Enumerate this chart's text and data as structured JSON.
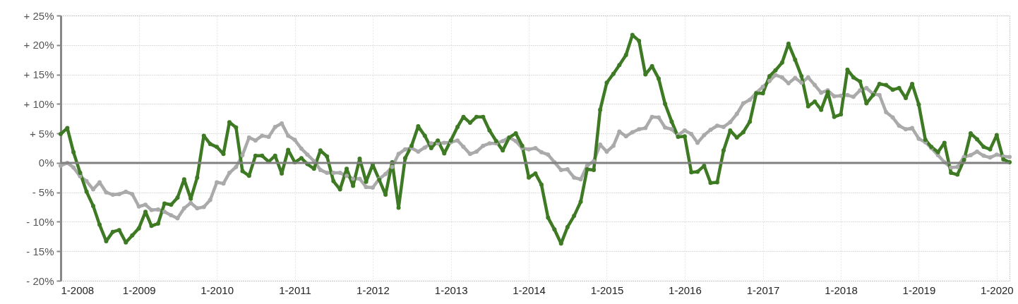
{
  "chart_data": {
    "type": "line",
    "x": [
      "2008-01",
      "2008-02",
      "2008-03",
      "2008-04",
      "2008-05",
      "2008-06",
      "2008-07",
      "2008-08",
      "2008-09",
      "2008-10",
      "2008-11",
      "2008-12",
      "2009-01",
      "2009-02",
      "2009-03",
      "2009-04",
      "2009-05",
      "2009-06",
      "2009-07",
      "2009-08",
      "2009-09",
      "2009-10",
      "2009-11",
      "2009-12",
      "2010-01",
      "2010-02",
      "2010-03",
      "2010-04",
      "2010-05",
      "2010-06",
      "2010-07",
      "2010-08",
      "2010-09",
      "2010-10",
      "2010-11",
      "2010-12",
      "2011-01",
      "2011-02",
      "2011-03",
      "2011-04",
      "2011-05",
      "2011-06",
      "2011-07",
      "2011-08",
      "2011-09",
      "2011-10",
      "2011-11",
      "2011-12",
      "2012-01",
      "2012-02",
      "2012-03",
      "2012-04",
      "2012-05",
      "2012-06",
      "2012-07",
      "2012-08",
      "2012-09",
      "2012-10",
      "2012-11",
      "2012-12",
      "2013-01",
      "2013-02",
      "2013-03",
      "2013-04",
      "2013-05",
      "2013-06",
      "2013-07",
      "2013-08",
      "2013-09",
      "2013-10",
      "2013-11",
      "2013-12",
      "2014-01",
      "2014-02",
      "2014-03",
      "2014-04",
      "2014-05",
      "2014-06",
      "2014-07",
      "2014-08",
      "2014-09",
      "2014-10",
      "2014-11",
      "2014-12",
      "2015-01",
      "2015-02",
      "2015-03",
      "2015-04",
      "2015-05",
      "2015-06",
      "2015-07",
      "2015-08",
      "2015-09",
      "2015-10",
      "2015-11",
      "2015-12",
      "2016-01",
      "2016-02",
      "2016-03",
      "2016-04",
      "2016-05",
      "2016-06",
      "2016-07",
      "2016-08",
      "2016-09",
      "2016-10",
      "2016-11",
      "2016-12",
      "2017-01",
      "2017-02",
      "2017-03",
      "2017-04",
      "2017-05",
      "2017-06",
      "2017-07",
      "2017-08",
      "2017-09",
      "2017-10",
      "2017-11",
      "2017-12",
      "2018-01",
      "2018-02",
      "2018-03",
      "2018-04",
      "2018-05",
      "2018-06",
      "2018-07",
      "2018-08",
      "2018-09",
      "2018-10",
      "2018-11",
      "2018-12",
      "2019-01",
      "2019-02",
      "2019-03",
      "2019-04",
      "2019-05",
      "2019-06",
      "2019-07",
      "2019-08",
      "2019-09",
      "2019-10",
      "2019-11",
      "2019-12",
      "2020-01",
      "2020-02",
      "2020-03"
    ],
    "xlim": [
      "2008-01",
      "2020-03"
    ],
    "xticks": [
      {
        "value": "2008-01",
        "label": "1-2008"
      },
      {
        "value": "2009-01",
        "label": "1-2009"
      },
      {
        "value": "2010-01",
        "label": "1-2010"
      },
      {
        "value": "2011-01",
        "label": "1-2011"
      },
      {
        "value": "2012-01",
        "label": "1-2012"
      },
      {
        "value": "2013-01",
        "label": "1-2013"
      },
      {
        "value": "2014-01",
        "label": "1-2014"
      },
      {
        "value": "2015-01",
        "label": "1-2015"
      },
      {
        "value": "2016-01",
        "label": "1-2016"
      },
      {
        "value": "2017-01",
        "label": "1-2017"
      },
      {
        "value": "2018-01",
        "label": "1-2018"
      },
      {
        "value": "2019-01",
        "label": "1-2019"
      },
      {
        "value": "2020-01",
        "label": "1-2020"
      }
    ],
    "ylim": [
      -20,
      25
    ],
    "yticks": [
      {
        "value": 25,
        "label": "+ 25%"
      },
      {
        "value": 20,
        "label": "+ 20%"
      },
      {
        "value": 15,
        "label": "+ 15%"
      },
      {
        "value": 10,
        "label": "+ 10%"
      },
      {
        "value": 5,
        "label": "+ 5%"
      },
      {
        "value": 0,
        "label": "0%"
      },
      {
        "value": -5,
        "label": "- 5%"
      },
      {
        "value": -10,
        "label": "- 10%"
      },
      {
        "value": -15,
        "label": "- 15%"
      },
      {
        "value": -20,
        "label": "- 20%"
      }
    ],
    "grid": true,
    "legend": false,
    "marker": "circle",
    "line_style": "solid",
    "ref_lines": [
      {
        "axis": "y",
        "value": 0,
        "label": null,
        "color": "#808080"
      }
    ],
    "series": [
      {
        "color": "#aaaaaa",
        "values": [
          -0.5,
          0.0,
          -0.8,
          -2.3,
          -3.1,
          -4.5,
          -3.3,
          -5.0,
          -5.4,
          -5.3,
          -4.9,
          -5.3,
          -7.4,
          -7.1,
          -8.0,
          -7.9,
          -8.3,
          -8.9,
          -9.4,
          -7.7,
          -6.8,
          -7.7,
          -7.5,
          -6.3,
          -3.3,
          -3.5,
          -1.7,
          -0.7,
          1.3,
          4.3,
          3.8,
          4.6,
          4.4,
          6.1,
          6.7,
          4.6,
          3.9,
          2.4,
          1.4,
          0.3,
          -1.2,
          -1.7,
          -1.7,
          -1.7,
          -2.2,
          -2.7,
          -2.7,
          -4.1,
          -4.2,
          -2.7,
          -1.9,
          -0.7,
          1.5,
          2.3,
          2.5,
          1.9,
          2.6,
          3.3,
          3.3,
          3.4,
          3.5,
          3.8,
          2.7,
          1.5,
          1.9,
          2.9,
          3.3,
          3.3,
          3.7,
          4.3,
          3.7,
          2.5,
          2.3,
          2.5,
          1.8,
          1.4,
          0.1,
          -1.2,
          -1.1,
          -2.5,
          -2.8,
          -0.5,
          0.3,
          3.1,
          1.9,
          2.9,
          5.3,
          4.5,
          5.2,
          5.7,
          5.9,
          7.8,
          7.7,
          6.0,
          5.7,
          4.7,
          5.5,
          4.9,
          3.4,
          4.7,
          5.6,
          6.3,
          6.1,
          6.9,
          8.3,
          10.1,
          10.7,
          11.9,
          12.9,
          13.9,
          14.9,
          14.5,
          13.5,
          14.4,
          13.6,
          14.5,
          13.2,
          11.9,
          12.3,
          11.3,
          11.4,
          11.5,
          11.2,
          12.3,
          12.7,
          11.7,
          11.5,
          8.6,
          7.7,
          6.3,
          5.7,
          5.9,
          4.1,
          3.5,
          2.5,
          1.3,
          0.1,
          -0.8,
          -0.7,
          1.0,
          1.3,
          1.9,
          1.2,
          0.9,
          1.4,
          1.1,
          1.0
        ]
      },
      {
        "color": "#3e7a23",
        "values": [
          4.9,
          5.9,
          1.8,
          -1.7,
          -4.9,
          -7.3,
          -10.5,
          -13.3,
          -11.7,
          -11.4,
          -13.5,
          -12.3,
          -11.1,
          -8.3,
          -10.7,
          -10.3,
          -6.9,
          -7.1,
          -5.9,
          -2.8,
          -6.1,
          -2.5,
          4.6,
          3.2,
          2.7,
          1.5,
          6.9,
          6.0,
          -1.4,
          -2.2,
          1.2,
          1.2,
          0.2,
          1.2,
          -1.8,
          2.2,
          0.1,
          0.8,
          -0.2,
          -1.0,
          2.1,
          1.1,
          -3.1,
          -4.5,
          -1.0,
          -3.9,
          0.7,
          -3.2,
          -0.3,
          -2.9,
          -5.4,
          0.1,
          -7.6,
          0.8,
          2.9,
          6.2,
          4.6,
          2.5,
          3.8,
          1.6,
          3.8,
          6.1,
          7.8,
          6.8,
          7.8,
          7.8,
          5.5,
          3.7,
          2.1,
          4.3,
          5.0,
          2.9,
          -2.5,
          -1.8,
          -3.7,
          -9.3,
          -11.3,
          -13.7,
          -10.9,
          -9.0,
          -6.6,
          -1.1,
          -1.2,
          9.0,
          13.6,
          15.1,
          16.6,
          18.3,
          21.7,
          20.7,
          15.0,
          16.4,
          14.3,
          10.0,
          7.0,
          4.4,
          4.5,
          -1.6,
          -1.5,
          -0.5,
          -3.4,
          -3.3,
          2.1,
          5.5,
          4.3,
          5.2,
          7.0,
          11.8,
          11.8,
          14.7,
          15.7,
          17.0,
          20.2,
          17.5,
          14.7,
          9.6,
          10.4,
          9.0,
          12.0,
          7.8,
          8.2,
          15.8,
          14.5,
          13.8,
          10.1,
          11.5,
          13.4,
          13.2,
          12.4,
          12.7,
          11.0,
          13.4,
          9.9,
          3.9,
          2.7,
          1.8,
          3.4,
          -1.7,
          -2.0,
          0.5,
          5.0,
          4.0,
          2.7,
          2.3,
          4.7,
          0.6,
          0.1
        ]
      }
    ]
  }
}
